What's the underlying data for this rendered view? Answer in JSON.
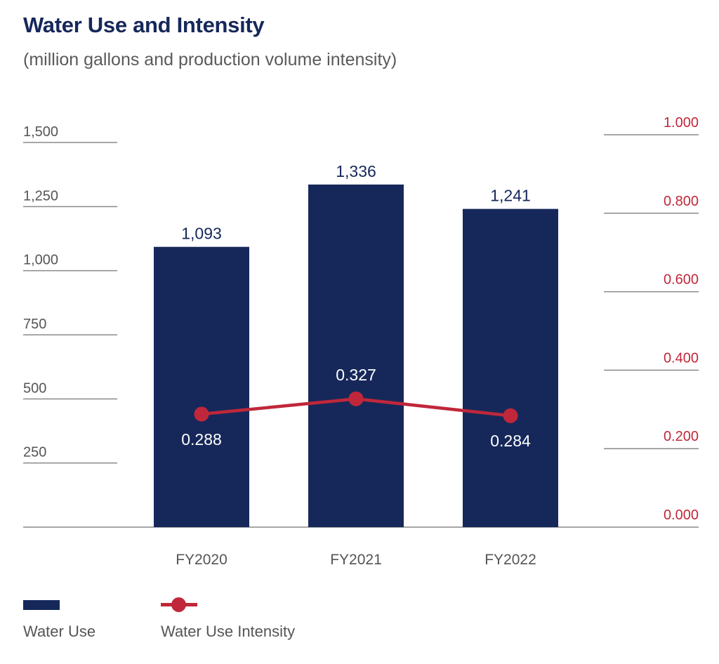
{
  "chart_data": {
    "type": "bar",
    "title": "Water Use and Intensity",
    "subtitle": "(million gallons and production volume intensity)",
    "categories": [
      "FY2020",
      "FY2021",
      "FY2022"
    ],
    "series": [
      {
        "name": "Water Use",
        "type": "bar",
        "axis": "left",
        "values": [
          1093,
          1336,
          1241
        ],
        "labels": [
          "1,093",
          "1,336",
          "1,241"
        ],
        "color": "#16285a"
      },
      {
        "name": "Water Use Intensity",
        "type": "line",
        "axis": "right",
        "values": [
          0.288,
          0.327,
          0.284
        ],
        "labels": [
          "0.288",
          "0.327",
          "0.284"
        ],
        "color": "#c0273a"
      }
    ],
    "y_left": {
      "min": 0,
      "max": 1500,
      "ticks": [
        250,
        500,
        750,
        1000,
        1250,
        1500
      ],
      "tick_labels": [
        "250",
        "500",
        "750",
        "1,000",
        "1,250",
        "1,500"
      ],
      "color": "#555555"
    },
    "y_right": {
      "min": 0,
      "max": 1,
      "ticks": [
        0,
        0.2,
        0.4,
        0.6,
        0.8,
        1.0
      ],
      "tick_labels": [
        "0.000",
        "0.200",
        "0.400",
        "0.600",
        "0.800",
        "1.000"
      ],
      "color": "#c0273a"
    },
    "grid": true,
    "legend_position": "bottom-left"
  }
}
